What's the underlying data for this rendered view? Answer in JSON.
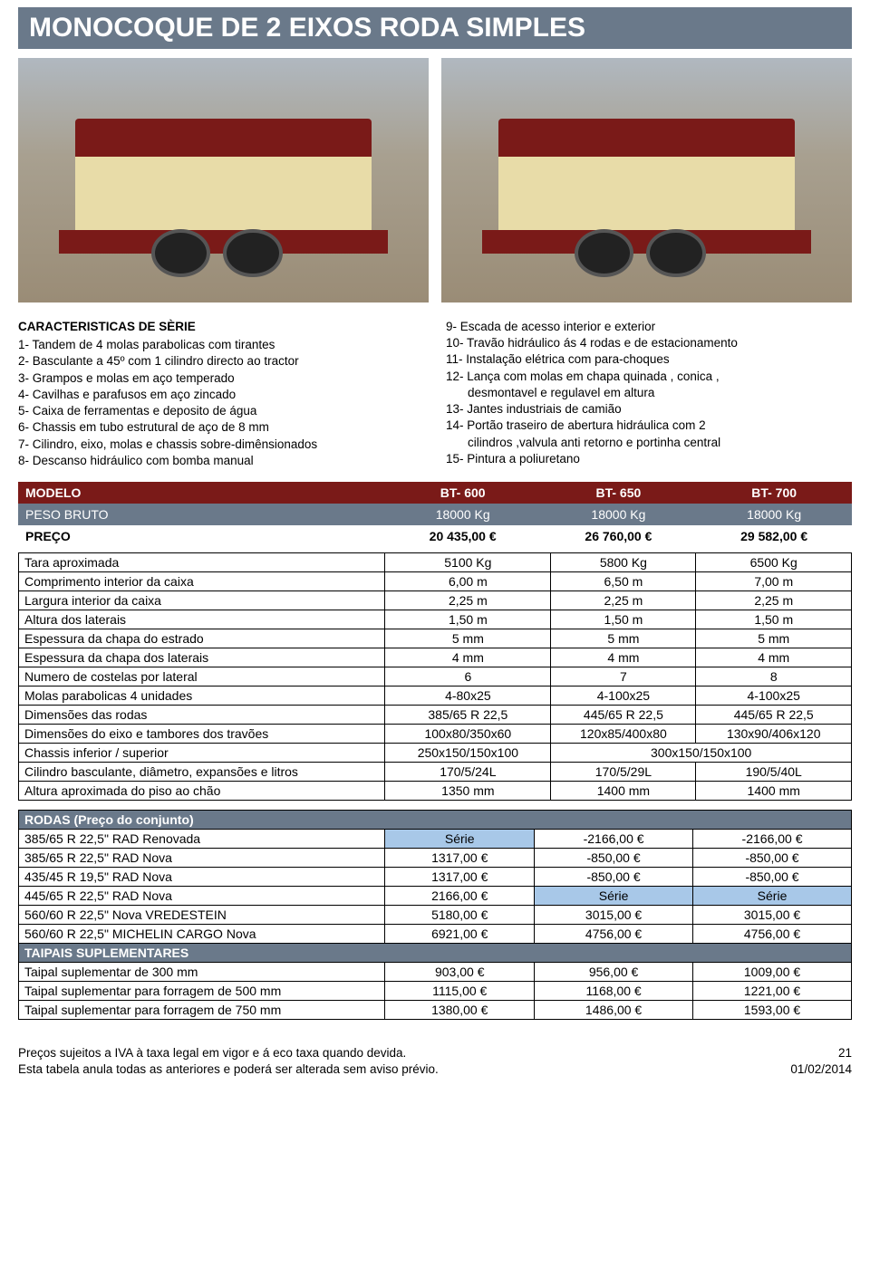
{
  "title": "MONOCOQUE DE 2 EIXOS RODA SIMPLES",
  "left_col": {
    "header": "CARACTERISTICAS DE SÈRIE",
    "items": [
      "1- Tandem de 4 molas parabolicas com tirantes",
      "2- Basculante a 45º com 1 cilindro directo ao tractor",
      "3- Grampos e molas em aço temperado",
      "4- Cavilhas e parafusos em aço zincado",
      "5- Caixa de ferramentas e deposito de água",
      "6- Chassis em tubo estrutural de aço de 8 mm",
      "7- Cilindro, eixo, molas e chassis sobre-dimênsionados",
      "8- Descanso hidráulico com bomba manual"
    ]
  },
  "right_col": {
    "items": [
      "9- Escada de acesso interior e exterior",
      "10- Travão hidráulico ás 4 rodas e de estacionamento",
      "11- Instalação elétrica com para-choques",
      "12- Lança com molas em chapa quinada , conica ,",
      "desmontavel e regulavel em altura",
      "13- Jantes industriais de camião",
      "14- Portão traseiro de abertura hidráulica com 2",
      "cilindros ,valvula anti retorno e portinha central",
      "15- Pintura a poliuretano"
    ],
    "indent_indices": [
      4,
      7
    ]
  },
  "model_table": {
    "rows": [
      {
        "cls": "row-dark",
        "cells": [
          "MODELO",
          "BT- 600",
          "BT- 650",
          "BT- 700"
        ]
      },
      {
        "cls": "row-grey",
        "cells": [
          "PESO BRUTO",
          "18000 Kg",
          "18000 Kg",
          "18000 Kg"
        ]
      },
      {
        "cls": "row-white",
        "cells": [
          "PREÇO",
          "20 435,00 €",
          "26 760,00 €",
          "29 582,00 €"
        ]
      }
    ]
  },
  "spec_table": {
    "rows": [
      [
        "Tara aproximada",
        "5100 Kg",
        "5800 Kg",
        "6500 Kg"
      ],
      [
        "Comprimento interior da caixa",
        "6,00 m",
        "6,50 m",
        "7,00 m"
      ],
      [
        "Largura interior da caixa",
        "2,25 m",
        "2,25 m",
        "2,25 m"
      ],
      [
        "Altura dos laterais",
        "1,50 m",
        "1,50 m",
        "1,50 m"
      ],
      [
        "Espessura da chapa do estrado",
        "5 mm",
        "5 mm",
        "5 mm"
      ],
      [
        "Espessura da chapa dos laterais",
        "4 mm",
        "4 mm",
        "4 mm"
      ],
      [
        "Numero de costelas por lateral",
        "6",
        "7",
        "8"
      ],
      [
        "Molas parabolicas 4 unidades",
        "4-80x25",
        "4-100x25",
        "4-100x25"
      ],
      [
        "Dimensões das rodas",
        "385/65 R 22,5",
        "445/65 R 22,5",
        "445/65 R 22,5"
      ],
      [
        "Dimensões do eixo e tambores dos travões",
        "100x80/350x60",
        "120x85/400x80",
        "130x90/406x120"
      ],
      [
        "Chassis inferior / superior",
        "250x150/150x100",
        {
          "text": "300x150/150x100",
          "span": 2
        }
      ],
      [
        "Cilindro basculante, diâmetro, expansões e litros",
        "170/5/24L",
        "170/5/29L",
        "190/5/40L"
      ],
      [
        "Altura aproximada do piso ao chão",
        "1350 mm",
        "1400 mm",
        "1400 mm"
      ]
    ]
  },
  "opt_table": {
    "header1": "RODAS (Preço do conjunto)",
    "rows1": [
      [
        "385/65 R 22,5\" RAD Renovada",
        {
          "text": "Série",
          "cls": "serie"
        },
        "-2166,00 €",
        "-2166,00 €"
      ],
      [
        "385/65 R 22,5\" RAD Nova",
        "1317,00 €",
        "-850,00 €",
        "-850,00 €"
      ],
      [
        "435/45 R 19,5\" RAD Nova",
        "1317,00 €",
        "-850,00 €",
        "-850,00 €"
      ],
      [
        "445/65 R 22,5\" RAD Nova",
        "2166,00 €",
        {
          "text": "Série",
          "cls": "serie"
        },
        {
          "text": "Série",
          "cls": "serie"
        }
      ],
      [
        "560/60 R 22,5\" Nova VREDESTEIN",
        "5180,00 €",
        "3015,00 €",
        "3015,00 €"
      ],
      [
        "560/60 R 22,5\" MICHELIN CARGO Nova",
        "6921,00 €",
        "4756,00 €",
        "4756,00 €"
      ]
    ],
    "header2": "TAIPAIS SUPLEMENTARES",
    "rows2": [
      [
        "Taipal suplementar de 300 mm",
        "903,00 €",
        "956,00 €",
        "1009,00 €"
      ],
      [
        "Taipal suplementar para forragem de 500 mm",
        "1115,00 €",
        "1168,00 €",
        "1221,00 €"
      ],
      [
        "Taipal suplementar para forragem de 750 mm",
        "1380,00 €",
        "1486,00 €",
        "1593,00 €"
      ]
    ]
  },
  "footer": {
    "line1": "Preços sujeitos a IVA à taxa legal em vigor e á eco taxa quando devida.",
    "line2": "Esta tabela anula todas as anteriores e poderá ser alterada sem aviso prévio.",
    "page": "21",
    "date": "01/02/2014"
  },
  "colors": {
    "title_bg": "#6a798a",
    "row_dark": "#7a1a18",
    "row_grey": "#6a798a",
    "serie_bg": "#a8c8e8"
  }
}
